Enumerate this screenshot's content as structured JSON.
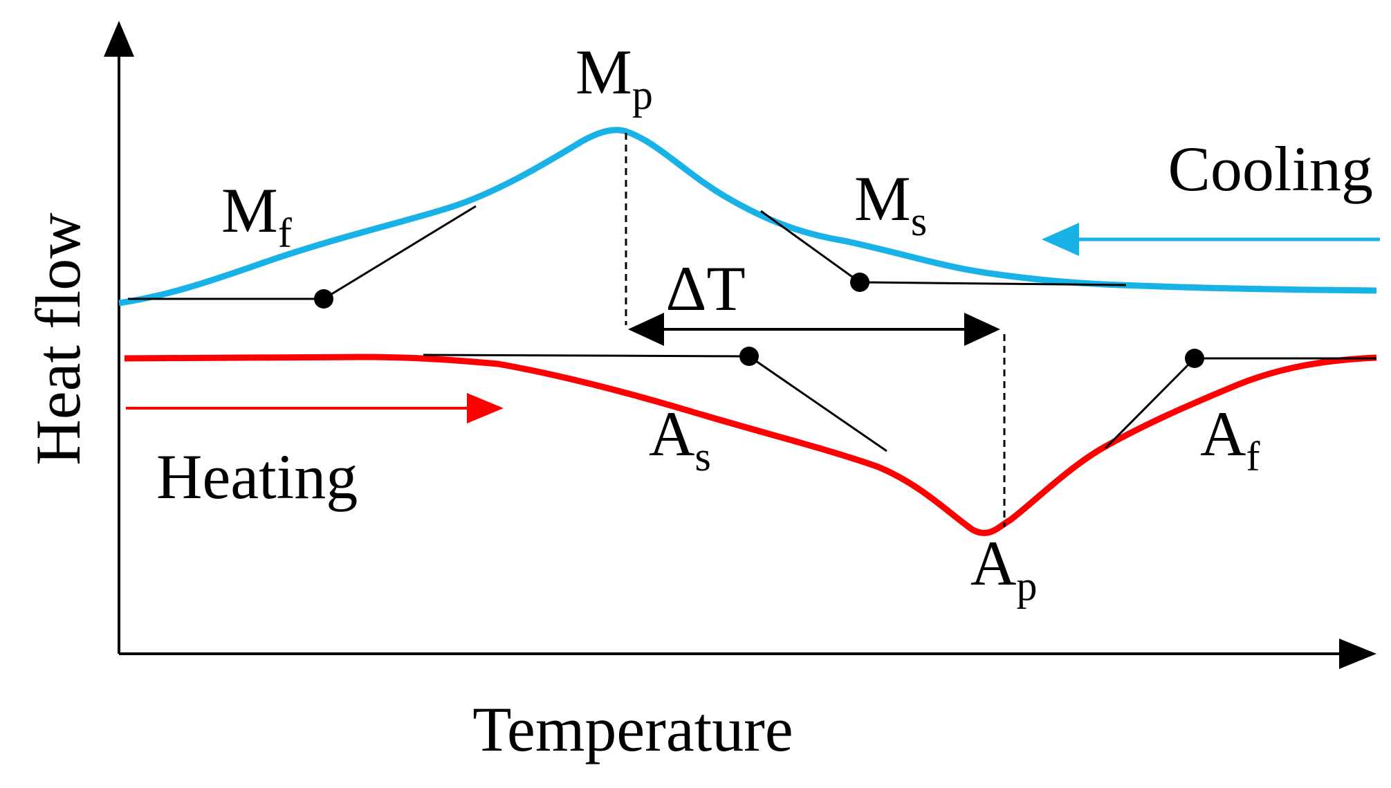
{
  "axes": {
    "y_label": "Heat flow",
    "x_label": "Temperature"
  },
  "curves": {
    "cooling": {
      "label": "Cooling",
      "color": "#19b2e6"
    },
    "heating": {
      "label": "Heating",
      "color": "#ff0000"
    }
  },
  "points": {
    "Mp": {
      "main": "M",
      "sub": "p"
    },
    "Mf": {
      "main": "M",
      "sub": "f"
    },
    "Ms": {
      "main": "M",
      "sub": "s"
    },
    "As": {
      "main": "A",
      "sub": "s"
    },
    "Ap": {
      "main": "A",
      "sub": "p"
    },
    "Af": {
      "main": "A",
      "sub": "f"
    }
  },
  "hysteresis": {
    "label": "ΔT"
  },
  "colors": {
    "axis": "#000000",
    "cooling": "#19b2e6",
    "heating": "#ff0000",
    "construction": "#000000"
  }
}
